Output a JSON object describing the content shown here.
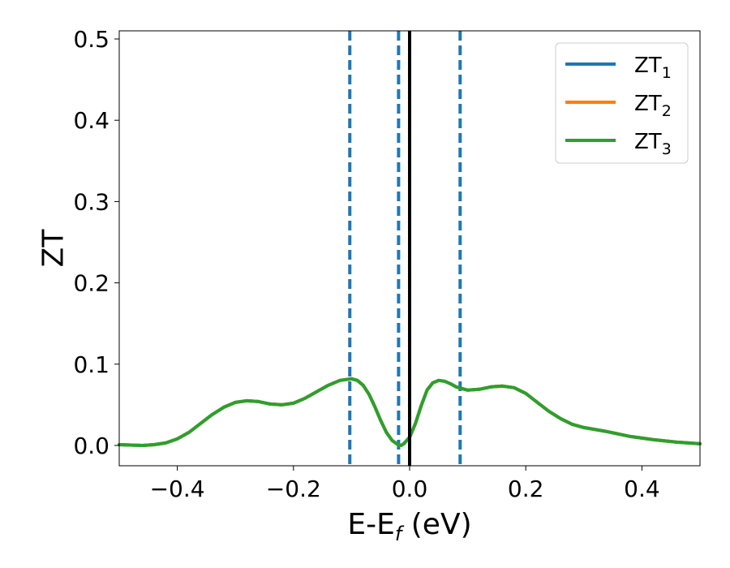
{
  "chart_data": {
    "type": "line",
    "xlabel": "E-E_f (eV)",
    "ylabel": "ZT",
    "xlim": [
      -0.5,
      0.5
    ],
    "ylim": [
      -0.025,
      0.51
    ],
    "xticks": [
      -0.4,
      -0.2,
      0.0,
      0.2,
      0.4
    ],
    "xtick_labels": [
      "−0.4",
      "−0.2",
      "0.0",
      "0.2",
      "0.4"
    ],
    "yticks": [
      0.0,
      0.1,
      0.2,
      0.3,
      0.4,
      0.5
    ],
    "ytick_labels": [
      "0.0",
      "0.1",
      "0.2",
      "0.3",
      "0.4",
      "0.5"
    ],
    "grid": false,
    "legend_position": "top-right",
    "fermi_line": {
      "x": 0.0,
      "color": "#000000"
    },
    "dashed_lines": {
      "x": [
        -0.103,
        -0.019,
        0.087
      ],
      "color": "#1f77b4"
    },
    "x": [
      -0.5,
      -0.46,
      -0.44,
      -0.42,
      -0.4,
      -0.38,
      -0.36,
      -0.34,
      -0.32,
      -0.3,
      -0.28,
      -0.26,
      -0.24,
      -0.22,
      -0.2,
      -0.18,
      -0.16,
      -0.14,
      -0.12,
      -0.1,
      -0.09,
      -0.08,
      -0.07,
      -0.06,
      -0.05,
      -0.04,
      -0.03,
      -0.02,
      -0.015,
      -0.01,
      0.0,
      0.01,
      0.02,
      0.03,
      0.04,
      0.05,
      0.06,
      0.07,
      0.08,
      0.1,
      0.12,
      0.14,
      0.16,
      0.18,
      0.2,
      0.22,
      0.24,
      0.26,
      0.28,
      0.3,
      0.34,
      0.38,
      0.42,
      0.46,
      0.5
    ],
    "series": [
      {
        "name": "ZT_1",
        "color": "#1f77b4",
        "values": [
          0.001,
          0.0,
          0.001,
          0.003,
          0.008,
          0.016,
          0.027,
          0.038,
          0.047,
          0.053,
          0.055,
          0.054,
          0.051,
          0.05,
          0.052,
          0.058,
          0.066,
          0.074,
          0.08,
          0.082,
          0.08,
          0.074,
          0.063,
          0.048,
          0.031,
          0.016,
          0.006,
          0.001,
          0.0,
          0.002,
          0.01,
          0.027,
          0.049,
          0.068,
          0.077,
          0.08,
          0.079,
          0.076,
          0.072,
          0.068,
          0.069,
          0.072,
          0.073,
          0.071,
          0.064,
          0.053,
          0.042,
          0.033,
          0.026,
          0.022,
          0.017,
          0.011,
          0.007,
          0.004,
          0.002
        ]
      },
      {
        "name": "ZT_2",
        "color": "#ff7f0e",
        "values": [
          0.001,
          0.0,
          0.001,
          0.003,
          0.008,
          0.016,
          0.027,
          0.038,
          0.047,
          0.053,
          0.055,
          0.054,
          0.051,
          0.05,
          0.052,
          0.058,
          0.066,
          0.074,
          0.08,
          0.082,
          0.08,
          0.074,
          0.063,
          0.048,
          0.031,
          0.016,
          0.006,
          0.001,
          0.0,
          0.002,
          0.01,
          0.027,
          0.049,
          0.068,
          0.077,
          0.08,
          0.079,
          0.076,
          0.072,
          0.068,
          0.069,
          0.072,
          0.073,
          0.071,
          0.064,
          0.053,
          0.042,
          0.033,
          0.026,
          0.022,
          0.017,
          0.011,
          0.007,
          0.004,
          0.002
        ]
      },
      {
        "name": "ZT_3",
        "color": "#2ca02c",
        "values": [
          0.001,
          0.0,
          0.001,
          0.003,
          0.008,
          0.016,
          0.027,
          0.038,
          0.047,
          0.053,
          0.055,
          0.054,
          0.051,
          0.05,
          0.052,
          0.058,
          0.066,
          0.074,
          0.08,
          0.082,
          0.08,
          0.074,
          0.063,
          0.048,
          0.031,
          0.016,
          0.006,
          0.001,
          0.0,
          0.002,
          0.01,
          0.027,
          0.049,
          0.068,
          0.077,
          0.08,
          0.079,
          0.076,
          0.072,
          0.068,
          0.069,
          0.072,
          0.073,
          0.071,
          0.064,
          0.053,
          0.042,
          0.033,
          0.026,
          0.022,
          0.017,
          0.011,
          0.007,
          0.004,
          0.002
        ]
      }
    ],
    "legend": [
      {
        "base": "ZT",
        "sub": "1"
      },
      {
        "base": "ZT",
        "sub": "2"
      },
      {
        "base": "ZT",
        "sub": "3"
      }
    ]
  }
}
